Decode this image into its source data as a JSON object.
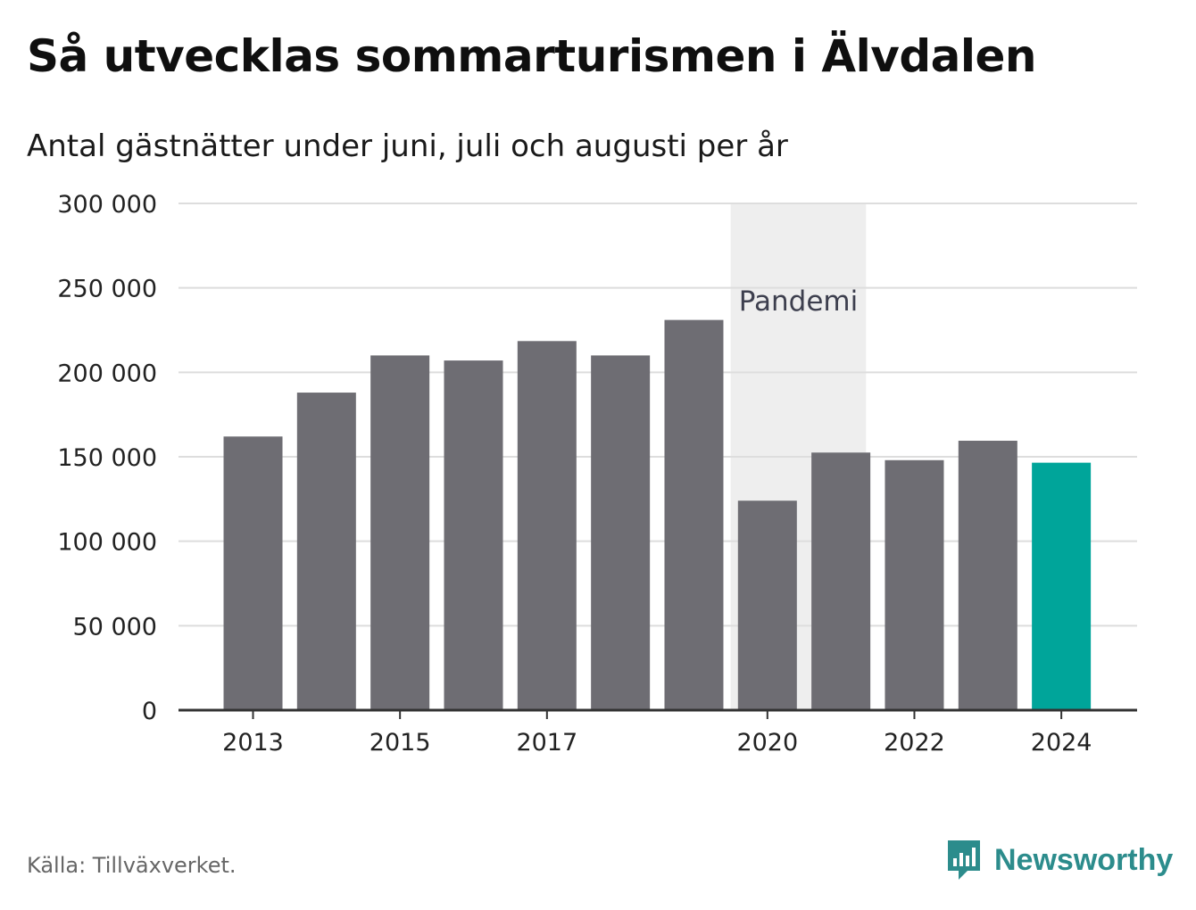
{
  "header": {
    "title": "Så utvecklas sommarturismen i Älvdalen",
    "subtitle": "Antal gästnätter under juni, juli och augusti per år"
  },
  "footer": {
    "source": "Källa: Tillväxverket.",
    "brand": "Newsworthy",
    "brand_icon": "bar-chart-speech-bubble-icon"
  },
  "colors": {
    "bar": "#6e6d73",
    "highlight": "#00a59a",
    "band": "#eeeeee",
    "grid": "#dddddd",
    "axis": "#333333",
    "brand": "#2c8c8c"
  },
  "chart_data": {
    "type": "bar",
    "title": "Så utvecklas sommarturismen i Älvdalen",
    "subtitle": "Antal gästnätter under juni, juli och augusti per år",
    "xlabel": "",
    "ylabel": "",
    "categories": [
      2013,
      2014,
      2015,
      2016,
      2017,
      2018,
      2019,
      2020,
      2021,
      2022,
      2023,
      2024
    ],
    "values": [
      162000,
      188000,
      210000,
      207000,
      218500,
      210000,
      231000,
      124000,
      152500,
      148000,
      159500,
      146500
    ],
    "highlight_category": 2024,
    "ylim": [
      0,
      300000
    ],
    "yticks": [
      0,
      50000,
      100000,
      150000,
      200000,
      250000,
      300000
    ],
    "ytick_labels": [
      "0",
      "50 000",
      "100 000",
      "150 000",
      "200 000",
      "250 000",
      "300 000"
    ],
    "xticks": [
      2013,
      2015,
      2017,
      2020,
      2022,
      2024
    ],
    "xtick_labels": [
      "2013",
      "2015",
      "2017",
      "2020",
      "2022",
      "2024"
    ],
    "grid": true,
    "annotation": {
      "label": "Pandemi",
      "from": 2020,
      "to": 2021
    }
  }
}
